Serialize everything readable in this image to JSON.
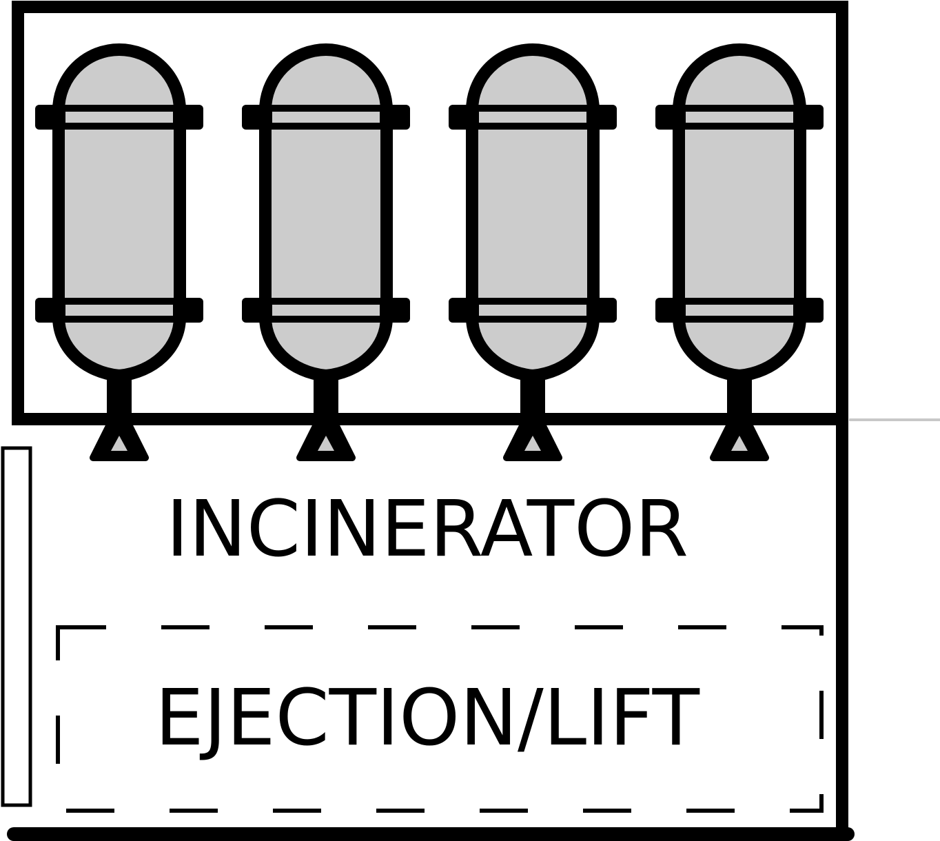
{
  "rooms": {
    "incinerator": {
      "label": "INCINERATOR"
    },
    "ejection_lift": {
      "label": "EJECTION/LIFT"
    }
  },
  "tanks": [
    {
      "name": "tank-1"
    },
    {
      "name": "tank-2"
    },
    {
      "name": "tank-3"
    },
    {
      "name": "tank-4"
    }
  ],
  "colors": {
    "line": "#000000",
    "tank_fill": "#cccccc",
    "background": "#ffffff",
    "connector": "#c8c8c8"
  }
}
